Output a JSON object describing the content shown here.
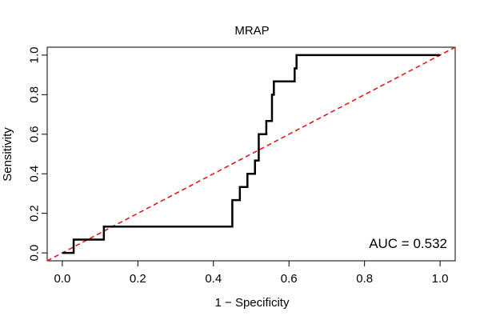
{
  "chart_data": {
    "type": "line",
    "title": "MRAP",
    "xlabel": "1 − Specificity",
    "ylabel": "Sensitivity",
    "xlim": [
      -0.04,
      1.04
    ],
    "ylim": [
      -0.04,
      1.04
    ],
    "x_ticks": [
      0.0,
      0.2,
      0.4,
      0.6,
      0.8,
      1.0
    ],
    "x_tick_labels": [
      "0.0",
      "0.2",
      "0.4",
      "0.6",
      "0.8",
      "1.0"
    ],
    "y_ticks": [
      0.0,
      0.2,
      0.4,
      0.6,
      0.8,
      1.0
    ],
    "y_tick_labels": [
      "0.0",
      "0.2",
      "0.4",
      "0.6",
      "0.8",
      "1.0"
    ],
    "grid": false,
    "annotation": "AUC = 0.532",
    "series": [
      {
        "color": "#000000",
        "style": "solid",
        "points": [
          [
            0.0,
            0.0
          ],
          [
            0.03,
            0.0
          ],
          [
            0.03,
            0.067
          ],
          [
            0.11,
            0.067
          ],
          [
            0.11,
            0.133
          ],
          [
            0.45,
            0.133
          ],
          [
            0.45,
            0.267
          ],
          [
            0.47,
            0.267
          ],
          [
            0.47,
            0.333
          ],
          [
            0.49,
            0.333
          ],
          [
            0.49,
            0.4
          ],
          [
            0.51,
            0.4
          ],
          [
            0.51,
            0.467
          ],
          [
            0.52,
            0.467
          ],
          [
            0.52,
            0.6
          ],
          [
            0.54,
            0.6
          ],
          [
            0.54,
            0.667
          ],
          [
            0.555,
            0.667
          ],
          [
            0.555,
            0.8
          ],
          [
            0.56,
            0.8
          ],
          [
            0.56,
            0.867
          ],
          [
            0.615,
            0.867
          ],
          [
            0.615,
            0.933
          ],
          [
            0.62,
            0.933
          ],
          [
            0.62,
            1.0
          ],
          [
            1.0,
            1.0
          ]
        ]
      },
      {
        "color": "#e31a1c",
        "style": "dashed",
        "points": [
          [
            -0.04,
            -0.04
          ],
          [
            1.04,
            1.04
          ]
        ]
      }
    ]
  }
}
